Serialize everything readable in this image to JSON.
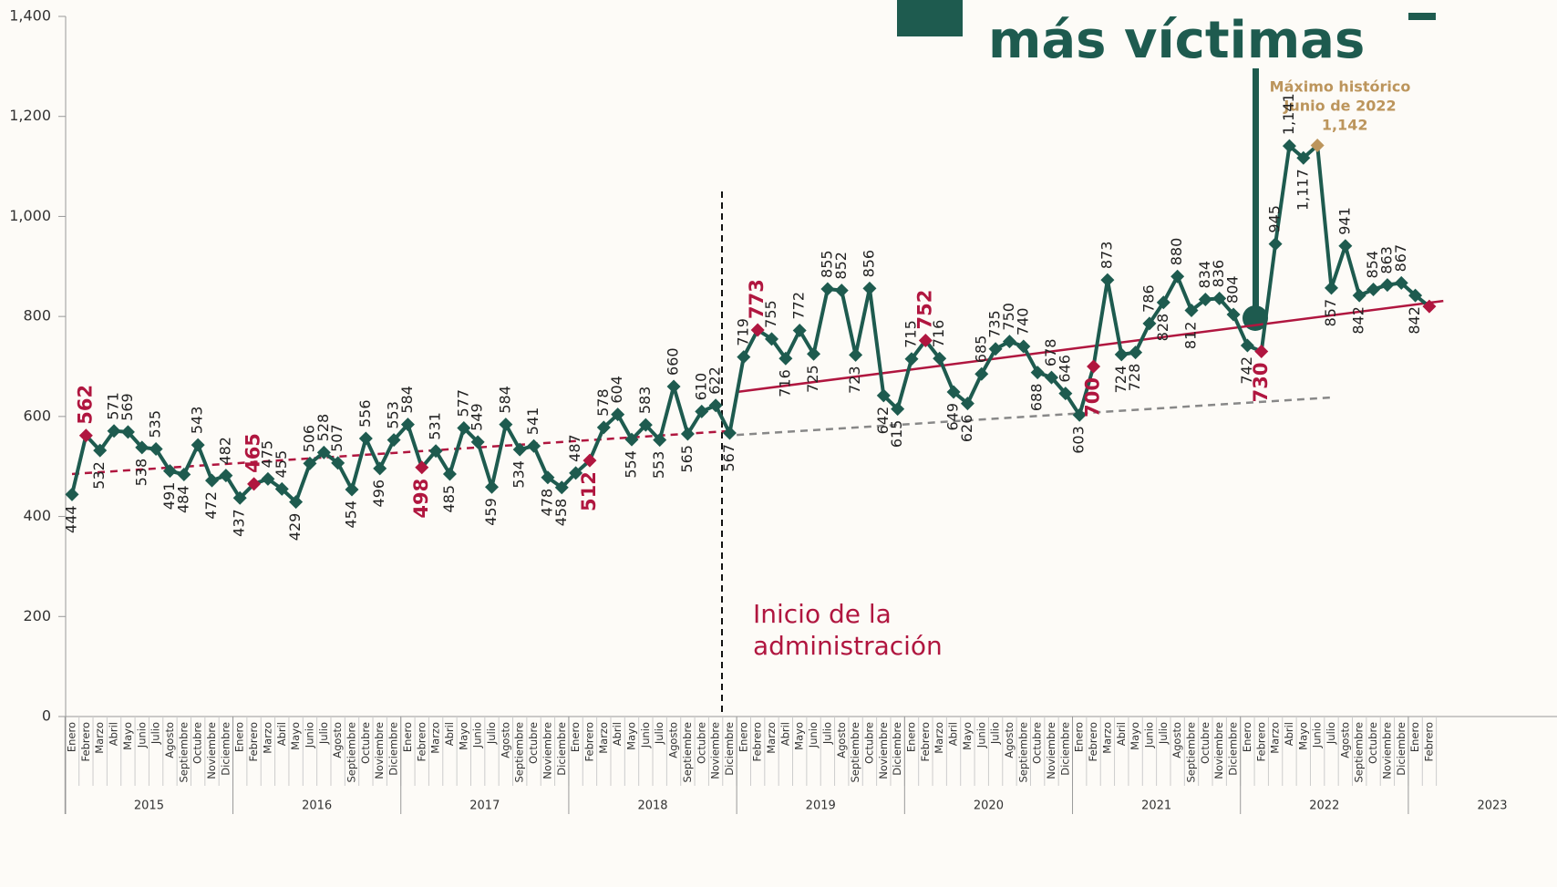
{
  "chart_data": {
    "type": "line",
    "title": "más víctimas",
    "annotation": "Inicio de la administración",
    "peak_annotation": [
      "Máximo histórico",
      "Junio de 2022"
    ],
    "categories": [
      "Enero",
      "Febrero",
      "Marzo",
      "Abril",
      "Mayo",
      "Junio",
      "Julio",
      "Agosto",
      "Septiembre",
      "Octubre",
      "Noviembre",
      "Diciembre",
      "Enero",
      "Febrero",
      "Marzo",
      "Abril",
      "Mayo",
      "Junio",
      "Julio",
      "Agosto",
      "Septiembre",
      "Octubre",
      "Noviembre",
      "Diciembre",
      "Enero",
      "Febrero",
      "Marzo",
      "Abril",
      "Mayo",
      "Junio",
      "Julio",
      "Agosto",
      "Septiembre",
      "Octubre",
      "Noviembre",
      "Diciembre",
      "Enero",
      "Febrero",
      "Marzo",
      "Abril",
      "Mayo",
      "Junio",
      "Julio",
      "Agosto",
      "Septiembre",
      "Octubre",
      "Noviembre",
      "Diciembre",
      "Enero",
      "Febrero",
      "Marzo",
      "Abril",
      "Mayo",
      "Junio",
      "Julio",
      "Agosto",
      "Septiembre",
      "Octubre",
      "Noviembre",
      "Diciembre",
      "Enero",
      "Febrero",
      "Marzo",
      "Abril",
      "Mayo",
      "Junio",
      "Julio",
      "Agosto",
      "Septiembre",
      "Octubre",
      "Noviembre",
      "Diciembre",
      "Enero",
      "Febrero",
      "Marzo",
      "Abril",
      "Mayo",
      "Junio",
      "Julio",
      "Agosto",
      "Septiembre",
      "Octubre",
      "Noviembre",
      "Diciembre",
      "Enero",
      "Febrero",
      "Marzo",
      "Abril",
      "Mayo",
      "Junio",
      "Julio",
      "Agosto",
      "Septiembre",
      "Octubre",
      "Noviembre",
      "Diciembre",
      "Enero",
      "Febrero"
    ],
    "years": [
      "2015",
      "2016",
      "2017",
      "2018",
      "2019",
      "2020",
      "2021",
      "2022",
      "2023"
    ],
    "series": [
      {
        "color": "#1e5b4f",
        "values": [
          444,
          562,
          532,
          571,
          569,
          538,
          535,
          491,
          484,
          543,
          472,
          482,
          437,
          465,
          475,
          455,
          429,
          506,
          528,
          507,
          454,
          556,
          496,
          553,
          584,
          498,
          531,
          485,
          577,
          549,
          459,
          584,
          534,
          541,
          478,
          458,
          487,
          512,
          578,
          604,
          554,
          583,
          553,
          660,
          565,
          610,
          622,
          567,
          719,
          773,
          755,
          716,
          772,
          725,
          855,
          852,
          723,
          856,
          642,
          615,
          715,
          752,
          716,
          649,
          626,
          685,
          735,
          750,
          740,
          688,
          678,
          646,
          603,
          700,
          873,
          724,
          728,
          786,
          828,
          880,
          812,
          834,
          836,
          804,
          742,
          730,
          945,
          1141,
          1117,
          1142,
          857,
          941,
          842,
          854,
          863,
          867,
          842,
          820
        ],
        "value_labels": [
          "444",
          "562",
          "532",
          "571",
          "569",
          "538",
          "535",
          "491",
          "484",
          "543",
          "472",
          "482",
          "437",
          "465",
          "475",
          "455",
          "429",
          "506",
          "528",
          "507",
          "454",
          "556",
          "496",
          "553",
          "584",
          "498",
          "531",
          "485",
          "577",
          "549",
          "459",
          "584",
          "534",
          "541",
          "478",
          "458",
          "487",
          "512",
          "578",
          "604",
          "554",
          "583",
          "553",
          "660",
          "565",
          "610",
          "622",
          "567",
          "719",
          "773",
          "755",
          "716",
          "772",
          "725",
          "855",
          "852",
          "723",
          "856",
          "642",
          "615",
          "715",
          "752",
          "716",
          "649",
          "626",
          "685",
          "735",
          "750",
          "740",
          "688",
          "678",
          "646",
          "603",
          "700",
          "873",
          "724",
          "728",
          "786",
          "828",
          "880",
          "812",
          "834",
          "836",
          "804",
          "742",
          "730",
          "945",
          "1,141",
          "1,117",
          "1,142",
          "857",
          "941",
          "842",
          "854",
          "863",
          "867",
          "842",
          null
        ],
        "marker_colors": [
          "#1e5b4f",
          "#b0163f",
          "#1e5b4f",
          "#1e5b4f",
          "#1e5b4f",
          "#1e5b4f",
          "#1e5b4f",
          "#1e5b4f",
          "#1e5b4f",
          "#1e5b4f",
          "#1e5b4f",
          "#1e5b4f",
          "#1e5b4f",
          "#b0163f",
          "#1e5b4f",
          "#1e5b4f",
          "#1e5b4f",
          "#1e5b4f",
          "#1e5b4f",
          "#1e5b4f",
          "#1e5b4f",
          "#1e5b4f",
          "#1e5b4f",
          "#1e5b4f",
          "#1e5b4f",
          "#b0163f",
          "#1e5b4f",
          "#1e5b4f",
          "#1e5b4f",
          "#1e5b4f",
          "#1e5b4f",
          "#1e5b4f",
          "#1e5b4f",
          "#1e5b4f",
          "#1e5b4f",
          "#1e5b4f",
          "#1e5b4f",
          "#b0163f",
          "#1e5b4f",
          "#1e5b4f",
          "#1e5b4f",
          "#1e5b4f",
          "#1e5b4f",
          "#1e5b4f",
          "#1e5b4f",
          "#1e5b4f",
          "#1e5b4f",
          "#1e5b4f",
          "#1e5b4f",
          "#b0163f",
          "#1e5b4f",
          "#1e5b4f",
          "#1e5b4f",
          "#1e5b4f",
          "#1e5b4f",
          "#1e5b4f",
          "#1e5b4f",
          "#1e5b4f",
          "#1e5b4f",
          "#1e5b4f",
          "#1e5b4f",
          "#b0163f",
          "#1e5b4f",
          "#1e5b4f",
          "#1e5b4f",
          "#1e5b4f",
          "#1e5b4f",
          "#1e5b4f",
          "#1e5b4f",
          "#1e5b4f",
          "#1e5b4f",
          "#1e5b4f",
          "#1e5b4f",
          "#b0163f",
          "#1e5b4f",
          "#1e5b4f",
          "#1e5b4f",
          "#1e5b4f",
          "#1e5b4f",
          "#1e5b4f",
          "#1e5b4f",
          "#1e5b4f",
          "#1e5b4f",
          "#1e5b4f",
          "#1e5b4f",
          "#b0163f",
          "#1e5b4f",
          "#1e5b4f",
          "#1e5b4f",
          "#bc955c",
          "#1e5b4f",
          "#1e5b4f",
          "#1e5b4f",
          "#1e5b4f",
          "#1e5b4f",
          "#1e5b4f",
          "#1e5b4f",
          "#b0163f"
        ]
      }
    ],
    "trends": [
      {
        "color": "#b0163f",
        "dash": true,
        "start": [
          0,
          485
        ],
        "end": [
          47,
          571
        ]
      },
      {
        "color": "#b0163f",
        "dash": false,
        "start": [
          47.5,
          649
        ],
        "end": [
          98,
          831
        ]
      },
      {
        "color": "#888888",
        "dash": true,
        "start": [
          47.5,
          563
        ],
        "end": [
          90,
          638
        ]
      }
    ],
    "ylim": [
      0,
      1400
    ],
    "yticks": [
      0,
      200,
      400,
      600,
      800,
      {
        "value": 1000,
        "label": "1,000"
      },
      {
        "value": 1200,
        "label": "1,200"
      },
      {
        "value": 1400,
        "label": "1,400"
      }
    ]
  }
}
